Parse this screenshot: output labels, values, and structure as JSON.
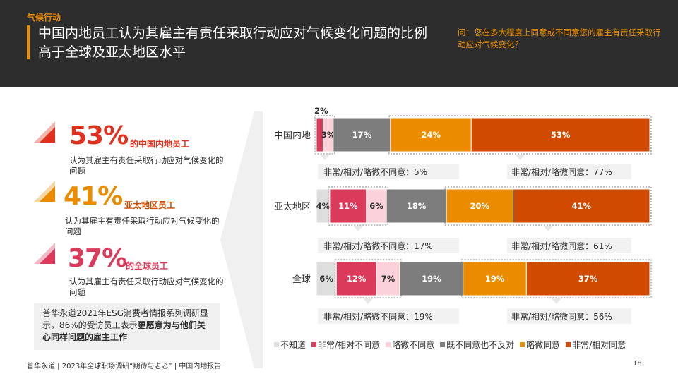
{
  "header": {
    "tag": "气候行动",
    "title_line1": "中国内地员工认为其雇主有责任采取行动应对气候变化问题的比例",
    "title_line2": "高于全球及亚太地区水平",
    "question": "问：您在多大程度上同意或不同意您的雇主有责任采取行动应对气候变化？"
  },
  "stats": [
    {
      "pct": "53%",
      "group": "的中国内地员工",
      "desc": "认为其雇主有责任采取行动应对气候变化的问题",
      "color": "#e0301e"
    },
    {
      "pct": "41%",
      "group": "亚太地区员工",
      "desc": "认为其雇主有责任采取行动应对气候变化的问题",
      "color": "#eb8c00"
    },
    {
      "pct": "37%",
      "group": "的全球员工",
      "desc": "认为其雇主有责任采取行动应对气候变化的问题",
      "color": "#db3a5b"
    }
  ],
  "note": {
    "part1": "普华永道2021年ESG消费者情报系列调研显示，86%的受访员工表示",
    "part2": "更愿意为与他们关心同样问题的雇主工作"
  },
  "footer": {
    "text": "普华永道 | 2023年全球职场调研“期待与忐忑” | 中国内地报告",
    "page": "18"
  },
  "chart_data": {
    "type": "bar",
    "orientation": "horizontal",
    "stacked": true,
    "categories": [
      "中国内地",
      "亚太地区",
      "全球"
    ],
    "series": [
      {
        "name": "不知道",
        "values": [
          0,
          4,
          6
        ],
        "color": "#dedede"
      },
      {
        "name": "非常/相对不同意",
        "values": [
          2,
          11,
          12
        ],
        "color": "#db3a5b"
      },
      {
        "name": "略微不同意",
        "values": [
          3,
          6,
          7
        ],
        "color": "#fcd2da"
      },
      {
        "name": "既不同意也不反对",
        "values": [
          17,
          18,
          19
        ],
        "color": "#7d7d7d"
      },
      {
        "name": "略微同意",
        "values": [
          24,
          20,
          19
        ],
        "color": "#eb8c00"
      },
      {
        "name": "非常/相对同意",
        "values": [
          53,
          41,
          37
        ],
        "color": "#d04a02"
      }
    ],
    "data_labels": [
      [
        "",
        "2%",
        "3%",
        "17%",
        "24%",
        "53%"
      ],
      [
        "4%",
        "11%",
        "6%",
        "18%",
        "20%",
        "41%"
      ],
      [
        "6%",
        "12%",
        "7%",
        "19%",
        "19%",
        "37%"
      ]
    ],
    "disagree_summary": [
      "非常/相对/略微不同意：5%",
      "非常/相对/略微不同意：17%",
      "非常/相对/略微不同意：19%"
    ],
    "agree_summary": [
      "非常/相对/略微同意：77%",
      "非常/相对/略微同意：61%",
      "非常/相对/略微同意：56%"
    ],
    "legend_position": "bottom"
  }
}
